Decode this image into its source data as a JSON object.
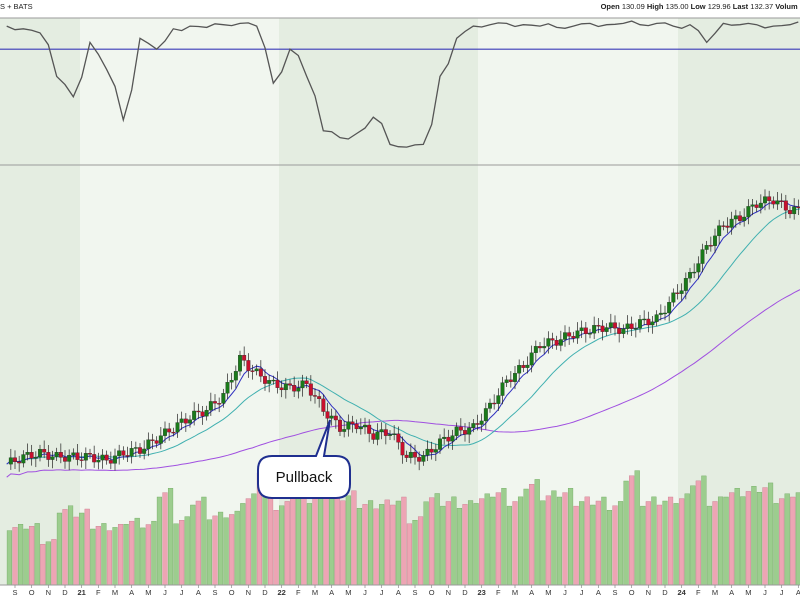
{
  "header": {
    "source_text": "S + BATS",
    "quote": [
      {
        "label": "Open",
        "value": "130.09"
      },
      {
        "label": "High",
        "value": "135.00"
      },
      {
        "label": "Low",
        "value": "129.96"
      },
      {
        "label": "Last",
        "value": "132.37"
      },
      {
        "label": "Volum",
        "value": ""
      }
    ]
  },
  "annotation": {
    "text": "Pullback"
  },
  "colors": {
    "up_candle": "#1a7a1a",
    "down_candle": "#c8102e",
    "ma_short": "#3030c0",
    "ma_mid": "#40b0b0",
    "ma_long": "#a050e0",
    "indicator_line": "#555555",
    "indicator_level": "#3a3ab8",
    "shade_light": "#f1f6ef",
    "shade_dark": "#e4ede1",
    "vol_up": "#9ccd8e",
    "vol_down": "#eda5b4"
  },
  "chart_data": {
    "type": "candlestick",
    "x_axis": {
      "ticks": [
        "S",
        "O",
        "N",
        "D",
        "21",
        "F",
        "M",
        "A",
        "M",
        "J",
        "J",
        "A",
        "S",
        "O",
        "N",
        "D",
        "22",
        "F",
        "M",
        "A",
        "M",
        "J",
        "J",
        "A",
        "S",
        "O",
        "N",
        "D",
        "23",
        "F",
        "M",
        "A",
        "M",
        "J",
        "J",
        "A",
        "S",
        "O",
        "N",
        "D",
        "24",
        "F",
        "M",
        "A",
        "M",
        "J",
        "J",
        "A"
      ],
      "year_ticks": [
        "21",
        "22",
        "23",
        "24"
      ]
    },
    "price_path": {
      "unit": "price (relative, no axis labels shown)",
      "months": [
        "S",
        "O",
        "N",
        "D",
        "21",
        "F",
        "M",
        "A",
        "M",
        "J",
        "J",
        "A",
        "S",
        "O",
        "N",
        "D",
        "22",
        "F",
        "M",
        "A",
        "M",
        "J",
        "J",
        "A",
        "S",
        "O",
        "N",
        "D",
        "23",
        "F",
        "M",
        "A",
        "M",
        "J",
        "J",
        "A",
        "S",
        "O",
        "N",
        "D",
        "24",
        "F",
        "M",
        "A",
        "M",
        "J",
        "J",
        "A"
      ],
      "close": [
        58,
        60,
        61,
        60,
        60,
        60,
        59,
        61,
        62,
        65,
        68,
        71,
        73,
        77,
        87,
        83,
        80,
        79,
        80,
        73,
        68,
        69,
        66,
        67,
        60,
        60,
        64,
        67,
        68,
        74,
        81,
        85,
        91,
        92,
        94,
        95,
        96,
        95,
        97,
        98,
        104,
        110,
        118,
        124,
        126,
        130,
        131,
        128
      ]
    },
    "moving_averages": [
      {
        "kind": "short"
      },
      {
        "kind": "mid"
      },
      {
        "kind": "long"
      }
    ],
    "indicator_panel": {
      "range": [
        0,
        100
      ],
      "level_line": 80,
      "values": [
        97,
        95,
        92,
        60,
        45,
        85,
        65,
        28,
        88,
        80,
        95,
        97,
        96,
        98,
        99,
        97,
        55,
        80,
        60,
        20,
        15,
        18,
        30,
        10,
        8,
        10,
        60,
        88,
        97,
        98,
        99,
        98,
        97,
        96,
        97,
        99,
        98,
        99,
        98,
        99,
        97,
        98,
        85,
        99,
        98,
        98,
        97,
        98
      ]
    },
    "volume": {
      "values": [
        40,
        35,
        30,
        45,
        50,
        35,
        40,
        38,
        42,
        55,
        45,
        50,
        48,
        42,
        60,
        70,
        55,
        65,
        60,
        58,
        62,
        48,
        56,
        50,
        45,
        52,
        58,
        48,
        60,
        55,
        58,
        60,
        62,
        55,
        58,
        50,
        55,
        65,
        58,
        50,
        60,
        62,
        58,
        55,
        65,
        58,
        60,
        55
      ],
      "up": [
        true,
        true,
        false,
        true,
        false,
        true,
        false,
        true,
        true,
        true,
        true,
        true,
        true,
        true,
        true,
        false,
        false,
        false,
        true,
        false,
        false,
        true,
        false,
        false,
        false,
        true,
        true,
        true,
        true,
        true,
        true,
        true,
        true,
        true,
        false,
        true,
        true,
        true,
        true,
        false,
        true,
        true,
        true,
        true,
        true,
        true,
        true,
        false
      ]
    }
  }
}
